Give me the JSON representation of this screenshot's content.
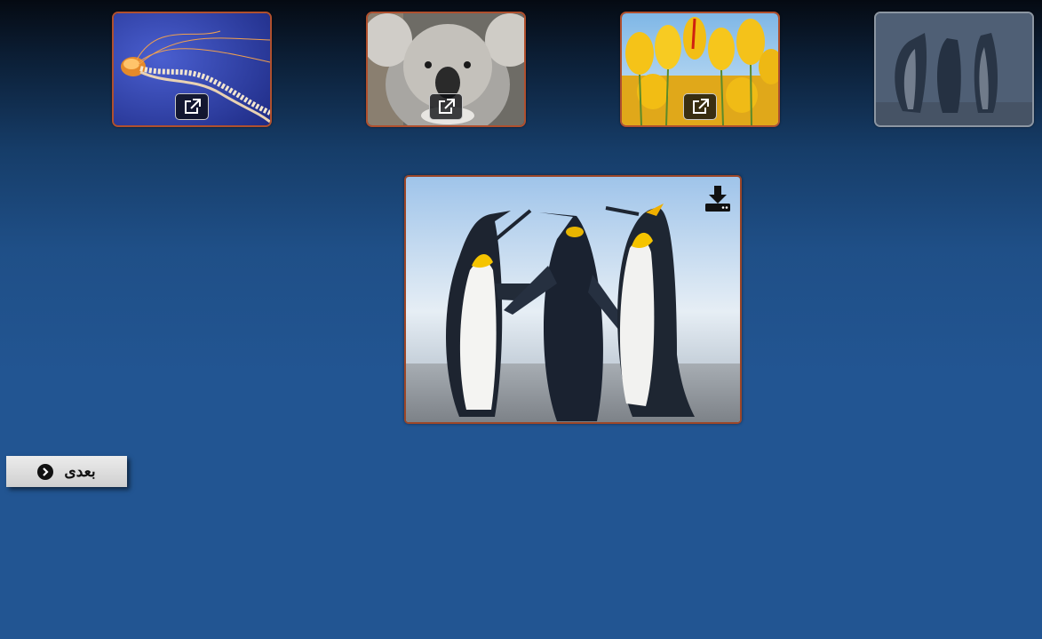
{
  "gallery": {
    "thumbnails": [
      {
        "subject": "jellyfish",
        "action_icon": "external-link-icon",
        "active": false
      },
      {
        "subject": "koala",
        "action_icon": "external-link-icon",
        "active": false
      },
      {
        "subject": "tulips",
        "action_icon": "external-link-icon",
        "active": false
      },
      {
        "subject": "penguins",
        "action_icon": "",
        "active": true
      }
    ]
  },
  "viewer": {
    "subject": "penguins",
    "download_icon": "download-icon"
  },
  "navigation": {
    "next_label": "بعدی",
    "next_icon": "chevron-circle-right-icon"
  },
  "colors": {
    "thumb_border": "#b0502e",
    "active_thumb_border": "#8c96a2",
    "main_border": "#9c4628",
    "background": "#225592"
  }
}
